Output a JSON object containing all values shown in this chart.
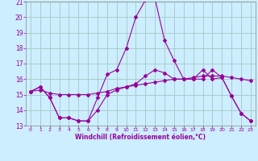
{
  "xlabel": "Windchill (Refroidissement éolien,°C)",
  "bg_color": "#cceeff",
  "grid_color": "#aacccc",
  "line_color": "#990099",
  "xlim": [
    -0.5,
    23.5
  ],
  "ylim": [
    13,
    21
  ],
  "xticks": [
    0,
    1,
    2,
    3,
    4,
    5,
    6,
    7,
    8,
    9,
    10,
    11,
    12,
    13,
    14,
    15,
    16,
    17,
    18,
    19,
    20,
    21,
    22,
    23
  ],
  "yticks": [
    13,
    14,
    15,
    16,
    17,
    18,
    19,
    20,
    21
  ],
  "line1_x": [
    0,
    1,
    2,
    3,
    4,
    5,
    6,
    7,
    8,
    9,
    10,
    11,
    12,
    13,
    14,
    15,
    16,
    17,
    18,
    19,
    20,
    21,
    22,
    23
  ],
  "line1_y": [
    15.2,
    15.5,
    14.8,
    13.5,
    13.5,
    13.3,
    13.3,
    14.0,
    15.0,
    15.3,
    15.5,
    15.7,
    16.2,
    16.6,
    16.4,
    16.0,
    16.0,
    16.0,
    16.0,
    16.6,
    16.1,
    14.9,
    13.8,
    13.3
  ],
  "line2_x": [
    0,
    1,
    2,
    3,
    4,
    5,
    6,
    7,
    8,
    9,
    10,
    11,
    12,
    13,
    14,
    15,
    16,
    17,
    18,
    19,
    20,
    21,
    22,
    23
  ],
  "line2_y": [
    15.2,
    15.5,
    14.8,
    13.5,
    13.5,
    13.3,
    13.3,
    14.8,
    16.3,
    16.6,
    18.0,
    20.0,
    21.1,
    21.2,
    18.5,
    17.2,
    16.0,
    16.0,
    16.6,
    16.0,
    16.1,
    14.9,
    13.8,
    13.3
  ],
  "line3_x": [
    0,
    1,
    2,
    3,
    4,
    5,
    6,
    7,
    8,
    9,
    10,
    11,
    12,
    13,
    14,
    15,
    16,
    17,
    18,
    19,
    20,
    21,
    22,
    23
  ],
  "line3_y": [
    15.2,
    15.3,
    15.1,
    15.0,
    15.0,
    15.0,
    15.0,
    15.1,
    15.2,
    15.4,
    15.5,
    15.6,
    15.7,
    15.8,
    15.9,
    16.0,
    16.0,
    16.1,
    16.2,
    16.2,
    16.2,
    16.1,
    16.0,
    15.9
  ]
}
